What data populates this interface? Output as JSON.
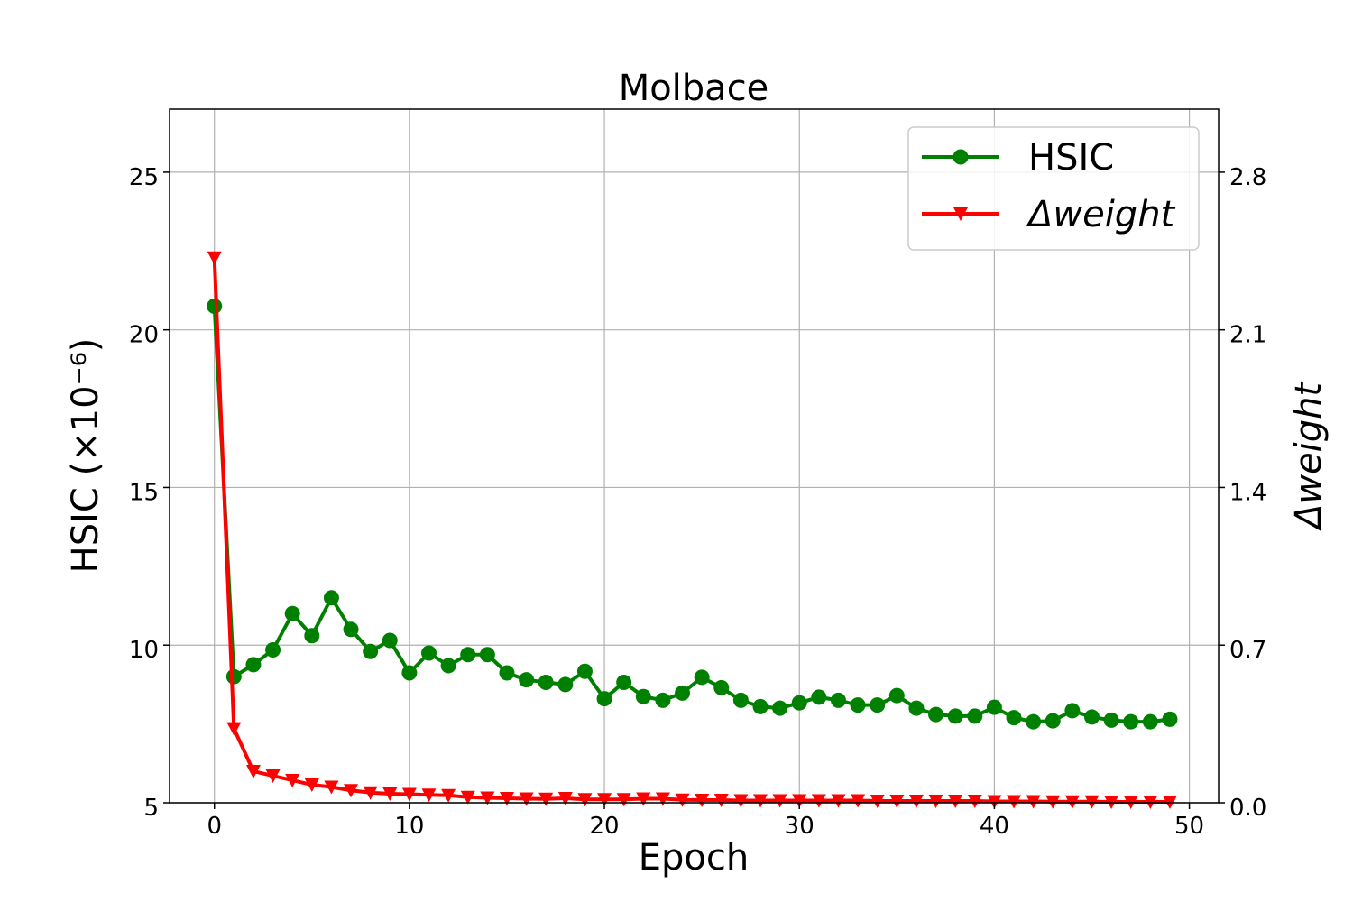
{
  "chart_data": {
    "type": "line",
    "title": "Molbace",
    "xlabel": "Epoch",
    "ylabel_left": "HSIC (×10⁻⁶)",
    "ylabel_right": "Δweight",
    "xlim": [
      -2.3,
      51.5
    ],
    "ylim_left": [
      5,
      27
    ],
    "ylim_right": [
      0,
      3.08
    ],
    "x_ticks": [
      0,
      10,
      20,
      30,
      40,
      50
    ],
    "y_left_ticks": [
      5,
      10,
      15,
      20,
      25
    ],
    "y_right_ticks": [
      "0.0",
      "0.7",
      "1.4",
      "2.1",
      "2.8"
    ],
    "grid": true,
    "legend_position": "top-right",
    "colors": {
      "hsic": "#008000",
      "weight": "#ff0000"
    },
    "x": [
      0,
      1,
      2,
      3,
      4,
      5,
      6,
      7,
      8,
      9,
      10,
      11,
      12,
      13,
      14,
      15,
      16,
      17,
      18,
      19,
      20,
      21,
      22,
      23,
      24,
      25,
      26,
      27,
      28,
      29,
      30,
      31,
      32,
      33,
      34,
      35,
      36,
      37,
      38,
      39,
      40,
      41,
      42,
      43,
      44,
      45,
      46,
      47,
      48,
      49
    ],
    "series": [
      {
        "name": "HSIC",
        "axis": "left",
        "marker": "circle",
        "color": "#008000",
        "values": [
          20.75,
          9.0,
          9.38,
          9.85,
          11.0,
          10.3,
          11.5,
          10.5,
          9.8,
          10.15,
          9.12,
          9.75,
          9.35,
          9.7,
          9.7,
          9.12,
          8.9,
          8.82,
          8.75,
          9.17,
          8.3,
          8.82,
          8.37,
          8.25,
          8.48,
          8.98,
          8.65,
          8.25,
          8.05,
          8.0,
          8.17,
          8.35,
          8.25,
          8.1,
          8.1,
          8.4,
          8.0,
          7.8,
          7.75,
          7.75,
          8.03,
          7.7,
          7.57,
          7.6,
          7.92,
          7.72,
          7.62,
          7.57,
          7.57,
          7.65
        ]
      },
      {
        "name": "Δweight",
        "axis": "right",
        "marker": "triangle-down",
        "color": "#ff0000",
        "values": [
          2.42,
          0.33,
          0.14,
          0.12,
          0.1,
          0.08,
          0.07,
          0.055,
          0.045,
          0.04,
          0.038,
          0.035,
          0.033,
          0.025,
          0.022,
          0.02,
          0.018,
          0.017,
          0.02,
          0.015,
          0.015,
          0.015,
          0.018,
          0.018,
          0.013,
          0.012,
          0.012,
          0.01,
          0.01,
          0.01,
          0.01,
          0.01,
          0.01,
          0.01,
          0.008,
          0.008,
          0.008,
          0.008,
          0.008,
          0.008,
          0.006,
          0.006,
          0.006,
          0.005,
          0.005,
          0.005,
          0.004,
          0.004,
          0.004,
          0.004
        ]
      }
    ]
  }
}
